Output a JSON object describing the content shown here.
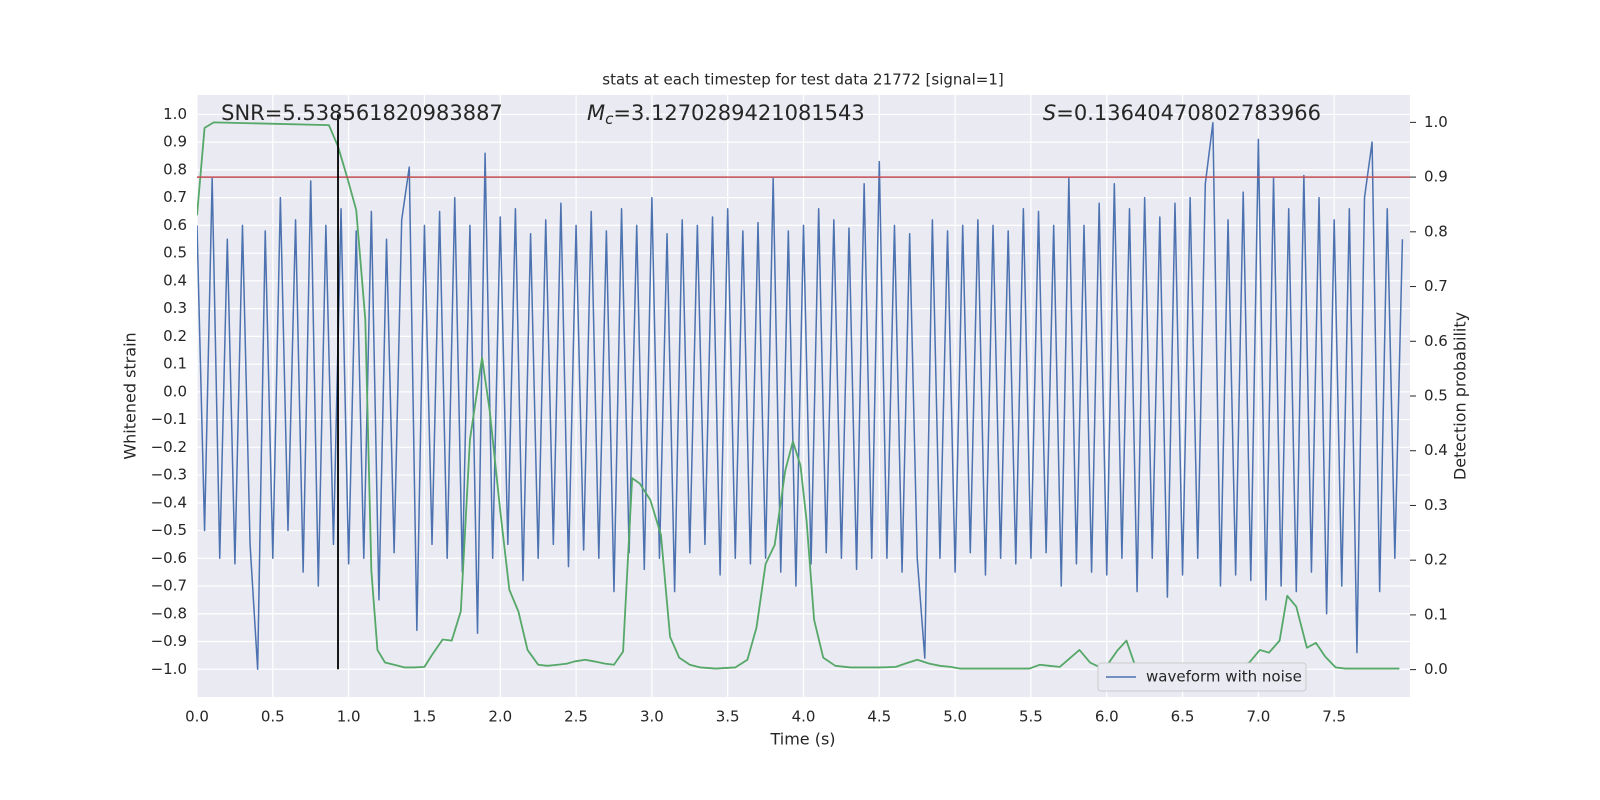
{
  "chart_data": {
    "type": "line",
    "title": "stats at each timestep for test data 21772 [signal=1]",
    "x_label": "Time (s)",
    "y_label": "Whitened strain",
    "y2_label": "Detection probability",
    "annotations": [
      {
        "text": "SNR=5.538561820983887"
      },
      {
        "symbol": "M",
        "subscript": "c",
        "text": "=3.1270289421081543"
      },
      {
        "symbol": "S",
        "text": "=0.13640470802783966"
      }
    ],
    "grid": true,
    "background": "#eaeaf2",
    "legend": "lower right",
    "xlim": [
      0,
      8.0
    ],
    "ylim": [
      -1.1,
      1.07
    ],
    "y2lim": [
      -0.05,
      1.05
    ],
    "xticks": [
      {
        "value": 0,
        "label": "0.0"
      },
      0.5,
      {
        "value": 1,
        "label": "1.0"
      },
      1.5,
      {
        "value": 2,
        "label": "2.0"
      },
      2.5,
      {
        "value": 3,
        "label": "3.0"
      },
      3.5,
      {
        "value": 4,
        "label": "4.0"
      },
      4.5,
      {
        "value": 5,
        "label": "5.0"
      },
      5.5,
      {
        "value": 6,
        "label": "6.0"
      },
      6.5,
      {
        "value": 7,
        "label": "7.0"
      },
      7.5
    ],
    "yticks": [
      {
        "value": -1,
        "label": "−1.0"
      },
      {
        "value": -0.9,
        "label": "−0.9"
      },
      {
        "value": -0.8,
        "label": "−0.8"
      },
      {
        "value": -0.7,
        "label": "−0.7"
      },
      {
        "value": -0.6,
        "label": "−0.6"
      },
      {
        "value": -0.5,
        "label": "−0.5"
      },
      {
        "value": -0.4,
        "label": "−0.4"
      },
      {
        "value": -0.3,
        "label": "−0.3"
      },
      {
        "value": -0.2,
        "label": "−0.2"
      },
      {
        "value": -0.1,
        "label": "−0.1"
      },
      {
        "value": 0,
        "label": "0.0"
      },
      0.1,
      0.2,
      0.3,
      0.4,
      0.5,
      0.6,
      0.7,
      0.8,
      0.9,
      {
        "value": 1,
        "label": "1.0"
      }
    ],
    "y2ticks": [
      {
        "value": 0,
        "label": "0.0"
      },
      0.1,
      0.2,
      0.3,
      0.4,
      0.5,
      0.6,
      0.7,
      0.8,
      0.9,
      {
        "value": 1,
        "label": "1.0"
      }
    ],
    "series": [
      {
        "name": "waveform with noise",
        "color": "#4c72b0",
        "x": [
          0,
          0.05,
          0.1,
          0.15,
          0.2,
          0.25,
          0.3,
          0.35,
          0.4,
          0.45,
          0.5,
          0.55,
          0.6,
          0.65,
          0.7,
          0.75,
          0.8,
          0.85,
          0.9,
          0.95,
          1,
          1.05,
          1.1,
          1.15,
          1.2,
          1.25,
          1.3,
          1.35,
          1.4,
          1.45,
          1.5,
          1.55,
          1.6,
          1.65,
          1.7,
          1.75,
          1.8,
          1.85,
          1.9,
          1.95,
          2,
          2.05,
          2.1,
          2.15,
          2.2,
          2.25,
          2.3,
          2.35,
          2.4,
          2.45,
          2.5,
          2.55,
          2.6,
          2.65,
          2.7,
          2.75,
          2.8,
          2.85,
          2.9,
          2.95,
          3,
          3.05,
          3.1,
          3.15,
          3.2,
          3.25,
          3.3,
          3.35,
          3.4,
          3.45,
          3.5,
          3.55,
          3.6,
          3.65,
          3.7,
          3.75,
          3.8,
          3.85,
          3.9,
          3.95,
          4,
          4.05,
          4.1,
          4.15,
          4.2,
          4.25,
          4.3,
          4.35,
          4.4,
          4.45,
          4.5,
          4.55,
          4.6,
          4.65,
          4.7,
          4.75,
          4.8,
          4.85,
          4.9,
          4.95,
          5,
          5.05,
          5.1,
          5.15,
          5.2,
          5.25,
          5.3,
          5.35,
          5.4,
          5.45,
          5.5,
          5.55,
          5.6,
          5.65,
          5.7,
          5.75,
          5.8,
          5.85,
          5.9,
          5.95,
          6,
          6.05,
          6.1,
          6.15,
          6.2,
          6.25,
          6.3,
          6.35,
          6.4,
          6.45,
          6.5,
          6.55,
          6.6,
          6.65,
          6.7,
          6.75,
          6.8,
          6.85,
          6.9,
          6.95,
          7,
          7.05,
          7.1,
          7.15,
          7.2,
          7.25,
          7.3,
          7.35,
          7.4,
          7.45,
          7.5,
          7.55,
          7.6,
          7.65,
          7.7,
          7.75,
          7.8,
          7.85,
          7.9,
          7.95
        ],
        "values": [
          0.6,
          -0.5,
          0.77,
          -0.6,
          0.55,
          -0.62,
          0.6,
          -0.55,
          -1.0,
          0.58,
          -0.6,
          0.7,
          -0.5,
          0.62,
          -0.65,
          0.76,
          -0.7,
          0.6,
          -0.55,
          0.66,
          -0.62,
          0.58,
          -0.6,
          0.65,
          -0.75,
          0.55,
          -0.58,
          0.62,
          0.81,
          -0.86,
          0.6,
          -0.55,
          0.65,
          -0.6,
          0.7,
          -0.65,
          0.6,
          -0.87,
          0.86,
          -0.6,
          0.63,
          -0.55,
          0.66,
          -0.68,
          0.57,
          -0.6,
          0.62,
          -0.55,
          0.68,
          -0.63,
          0.6,
          -0.57,
          0.65,
          -0.6,
          0.58,
          -0.72,
          0.66,
          -0.58,
          0.6,
          -0.64,
          0.7,
          -0.6,
          0.57,
          -0.72,
          0.62,
          -0.58,
          0.6,
          -0.55,
          0.63,
          -0.66,
          0.66,
          -0.6,
          0.58,
          -0.62,
          0.61,
          -0.6,
          0.77,
          -0.65,
          0.58,
          -0.7,
          0.6,
          -0.62,
          0.66,
          -0.58,
          0.62,
          -0.6,
          0.59,
          -0.64,
          0.75,
          -0.6,
          0.83,
          -0.6,
          0.6,
          -0.65,
          0.57,
          -0.6,
          -0.96,
          0.62,
          -0.6,
          0.58,
          -0.65,
          0.6,
          -0.58,
          0.62,
          -0.66,
          0.6,
          -0.6,
          0.58,
          -0.62,
          0.66,
          -0.6,
          0.65,
          -0.58,
          0.6,
          -0.7,
          0.77,
          -0.62,
          0.6,
          -0.65,
          0.68,
          -0.66,
          0.75,
          -0.6,
          0.66,
          -0.72,
          0.7,
          -0.6,
          0.63,
          -0.74,
          0.68,
          -0.66,
          0.7,
          -0.6,
          0.75,
          0.97,
          -0.7,
          0.62,
          -0.66,
          0.72,
          -0.68,
          0.91,
          -0.75,
          0.77,
          -0.7,
          0.66,
          -0.72,
          0.78,
          -0.65,
          0.7,
          -0.8,
          0.62,
          -0.7,
          0.66,
          -0.94,
          0.7,
          0.9,
          -0.72,
          0.66,
          -0.6,
          0.55
        ]
      },
      {
        "color": "#55a868",
        "axis": "y2",
        "x": [
          0,
          0.05,
          0.11,
          0.87,
          0.93,
          0.99,
          1.05,
          1.11,
          1.15,
          1.19,
          1.24,
          1.3,
          1.37,
          1.43,
          1.5,
          1.55,
          1.62,
          1.68,
          1.74,
          1.8,
          1.88,
          1.93,
          2.0,
          2.06,
          2.12,
          2.18,
          2.25,
          2.31,
          2.38,
          2.44,
          2.49,
          2.56,
          2.62,
          2.69,
          2.75,
          2.81,
          2.87,
          2.92,
          2.99,
          3.06,
          3.12,
          3.18,
          3.25,
          3.32,
          3.42,
          3.55,
          3.63,
          3.69,
          3.75,
          3.81,
          3.88,
          3.93,
          3.98,
          4.02,
          4.07,
          4.13,
          4.21,
          4.31,
          4.5,
          4.61,
          4.67,
          4.75,
          4.83,
          4.9,
          4.97,
          5.03,
          5.49,
          5.56,
          5.62,
          5.69,
          5.82,
          5.89,
          5.95,
          6.0,
          6.07,
          6.13,
          6.19,
          6.28,
          6.61,
          6.87,
          6.94,
          7.01,
          7.07,
          7.14,
          7.19,
          7.25,
          7.32,
          7.38,
          7.44,
          7.51,
          7.57,
          7.93
        ],
        "values": [
          0.83,
          0.99,
          1.0,
          0.995,
          0.956,
          0.9,
          0.84,
          0.64,
          0.18,
          0.036,
          0.013,
          0.009,
          0.004,
          0.004,
          0.005,
          0.027,
          0.055,
          0.053,
          0.107,
          0.42,
          0.57,
          0.474,
          0.29,
          0.146,
          0.106,
          0.036,
          0.009,
          0.007,
          0.009,
          0.011,
          0.015,
          0.018,
          0.015,
          0.011,
          0.009,
          0.033,
          0.35,
          0.34,
          0.31,
          0.246,
          0.06,
          0.022,
          0.009,
          0.004,
          0.002,
          0.004,
          0.018,
          0.077,
          0.193,
          0.228,
          0.364,
          0.417,
          0.373,
          0.273,
          0.091,
          0.022,
          0.007,
          0.004,
          0.004,
          0.005,
          0.011,
          0.018,
          0.011,
          0.007,
          0.005,
          0.002,
          0.002,
          0.009,
          0.007,
          0.005,
          0.036,
          0.013,
          0.005,
          0.007,
          0.035,
          0.053,
          0.005,
          0.004,
          0.002,
          0.004,
          0.013,
          0.036,
          0.031,
          0.053,
          0.135,
          0.115,
          0.04,
          0.049,
          0.024,
          0.004,
          0.002,
          0.002
        ]
      }
    ],
    "hlines": [
      {
        "y": 0.9,
        "axis": "y2",
        "color": "#c44e52"
      }
    ],
    "vlines": [
      {
        "x": 0.93,
        "ymin": -1.0,
        "ymax": 1.0,
        "color": "#000000"
      }
    ]
  }
}
